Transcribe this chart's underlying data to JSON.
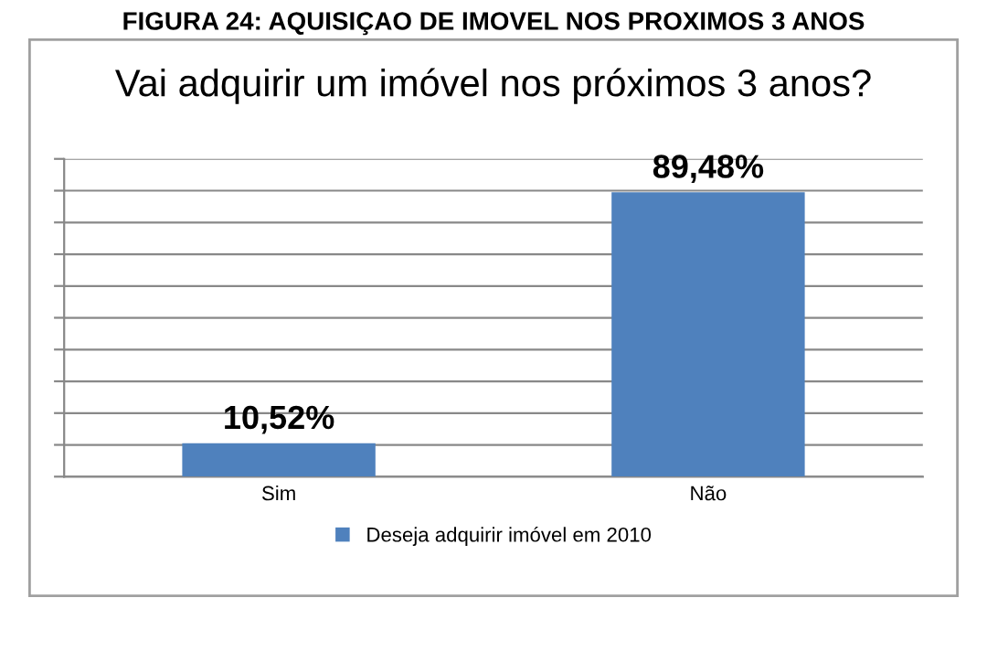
{
  "chart_data": {
    "type": "bar",
    "title": "FIGURA 24: AQUISIÇAO DE IMOVEL NOS PROXIMOS 3 ANOS",
    "subtitle": "Vai adquirir um imóvel nos próximos 3 anos?",
    "categories": [
      "Sim",
      "Não"
    ],
    "series": [
      {
        "name": "Deseja adquirir imóvel em 2010",
        "color": "#4f81bd",
        "values": [
          10.52,
          89.48
        ],
        "value_labels": [
          "10,52%",
          "89,48%"
        ]
      }
    ],
    "ylim": [
      0,
      100
    ],
    "yticks": [
      {
        "value": 0,
        "label": null
      },
      {
        "value": 10,
        "label": null
      },
      {
        "value": 20,
        "label": null
      },
      {
        "value": 30,
        "label": null
      },
      {
        "value": 40,
        "label": null
      },
      {
        "value": 50,
        "label": null
      },
      {
        "value": 60,
        "label": null
      },
      {
        "value": 70,
        "label": null
      },
      {
        "value": 80,
        "label": null
      },
      {
        "value": 90,
        "label": null
      },
      {
        "value": 100,
        "label": null
      }
    ],
    "tick_labels": "x",
    "grid": "y",
    "legend": "bottom"
  }
}
